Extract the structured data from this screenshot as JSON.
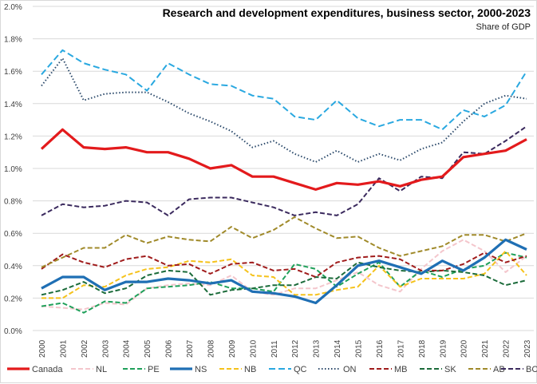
{
  "chart_data": {
    "type": "line",
    "title": "Research and development expenditures, business sector, 2000-2023",
    "subtitle": "Share of GDP",
    "xlabel": "",
    "ylabel": "",
    "ylim": [
      0,
      2.0
    ],
    "y_ticks": [
      0.0,
      0.2,
      0.4,
      0.6,
      0.8,
      1.0,
      1.2,
      1.4,
      1.6,
      1.8,
      2.0
    ],
    "y_tick_labels": [
      "0.0%",
      "0.2%",
      "0.4%",
      "0.6%",
      "0.8%",
      "1.0%",
      "1.2%",
      "1.4%",
      "1.6%",
      "1.8%",
      "2.0%"
    ],
    "grid": true,
    "legend_position": "bottom",
    "x": [
      "2000",
      "2001",
      "2002",
      "2003",
      "2004",
      "2005",
      "2006",
      "2007",
      "2008",
      "2009",
      "2010",
      "2011",
      "2012",
      "2013",
      "2014",
      "2015",
      "2016",
      "2017",
      "2018",
      "2019",
      "2020",
      "2021",
      "2022",
      "2023"
    ],
    "series": [
      {
        "name": "Canada",
        "color": "#e31a1c",
        "style": "solid-thick",
        "values": [
          1.12,
          1.24,
          1.13,
          1.12,
          1.13,
          1.1,
          1.1,
          1.06,
          1.0,
          1.02,
          0.95,
          0.95,
          0.91,
          0.87,
          0.91,
          0.9,
          0.92,
          0.89,
          0.93,
          0.95,
          1.07,
          1.09,
          1.11,
          1.18
        ]
      },
      {
        "name": "NL",
        "color": "#f4c6cc",
        "style": "dashed",
        "values": [
          0.15,
          0.14,
          0.13,
          0.17,
          0.16,
          0.26,
          0.28,
          0.29,
          0.28,
          0.34,
          0.24,
          0.22,
          0.26,
          0.26,
          0.31,
          0.36,
          0.28,
          0.24,
          0.38,
          0.49,
          0.56,
          0.49,
          0.36,
          0.46
        ]
      },
      {
        "name": "PE",
        "color": "#1fa05a",
        "style": "dashed",
        "values": [
          0.15,
          0.17,
          0.11,
          0.18,
          0.17,
          0.26,
          0.27,
          0.28,
          0.3,
          0.26,
          0.26,
          0.24,
          0.41,
          0.38,
          0.27,
          0.35,
          0.42,
          0.27,
          0.37,
          0.33,
          0.38,
          0.4,
          0.48,
          0.45
        ]
      },
      {
        "name": "NS",
        "color": "#1f6fb4",
        "style": "solid-thick",
        "values": [
          0.26,
          0.33,
          0.33,
          0.25,
          0.3,
          0.3,
          0.32,
          0.31,
          0.29,
          0.31,
          0.24,
          0.23,
          0.21,
          0.17,
          0.28,
          0.4,
          0.43,
          0.39,
          0.35,
          0.43,
          0.37,
          0.45,
          0.56,
          0.5
        ]
      },
      {
        "name": "NB",
        "color": "#f5c21b",
        "style": "dashed",
        "values": [
          0.2,
          0.2,
          0.28,
          0.27,
          0.34,
          0.38,
          0.39,
          0.43,
          0.42,
          0.44,
          0.34,
          0.33,
          0.22,
          0.22,
          0.25,
          0.27,
          0.4,
          0.27,
          0.32,
          0.32,
          0.32,
          0.35,
          0.49,
          0.34
        ]
      },
      {
        "name": "QC",
        "color": "#29a8e0",
        "style": "dashed-long",
        "values": [
          1.58,
          1.73,
          1.65,
          1.61,
          1.58,
          1.48,
          1.65,
          1.58,
          1.52,
          1.51,
          1.45,
          1.43,
          1.32,
          1.3,
          1.42,
          1.31,
          1.26,
          1.3,
          1.3,
          1.24,
          1.36,
          1.32,
          1.39,
          1.6
        ]
      },
      {
        "name": "ON",
        "color": "#2c4a6b",
        "style": "dotted",
        "values": [
          1.51,
          1.68,
          1.42,
          1.46,
          1.47,
          1.47,
          1.41,
          1.34,
          1.29,
          1.23,
          1.13,
          1.17,
          1.09,
          1.04,
          1.11,
          1.04,
          1.09,
          1.05,
          1.12,
          1.16,
          1.29,
          1.4,
          1.45,
          1.43
        ]
      },
      {
        "name": "MB",
        "color": "#a01c1c",
        "style": "dashed",
        "values": [
          0.38,
          0.47,
          0.42,
          0.39,
          0.44,
          0.46,
          0.4,
          0.41,
          0.35,
          0.41,
          0.42,
          0.37,
          0.38,
          0.33,
          0.42,
          0.45,
          0.46,
          0.44,
          0.37,
          0.37,
          0.41,
          0.48,
          0.42,
          0.46
        ]
      },
      {
        "name": "SK",
        "color": "#1b6b3a",
        "style": "dashed",
        "values": [
          0.22,
          0.25,
          0.3,
          0.23,
          0.26,
          0.34,
          0.37,
          0.36,
          0.22,
          0.25,
          0.26,
          0.28,
          0.28,
          0.33,
          0.32,
          0.42,
          0.39,
          0.37,
          0.36,
          0.37,
          0.36,
          0.34,
          0.28,
          0.31
        ]
      },
      {
        "name": "AB",
        "color": "#a08a2a",
        "style": "dashed",
        "values": [
          0.39,
          0.45,
          0.51,
          0.51,
          0.59,
          0.54,
          0.58,
          0.56,
          0.55,
          0.64,
          0.57,
          0.62,
          0.7,
          0.63,
          0.57,
          0.58,
          0.51,
          0.46,
          0.49,
          0.52,
          0.59,
          0.59,
          0.55,
          0.6
        ]
      },
      {
        "name": "BC",
        "color": "#3b2a5e",
        "style": "dashed",
        "values": [
          0.71,
          0.78,
          0.76,
          0.77,
          0.8,
          0.79,
          0.71,
          0.81,
          0.82,
          0.82,
          0.79,
          0.76,
          0.71,
          0.73,
          0.71,
          0.78,
          0.94,
          0.86,
          0.95,
          0.94,
          1.1,
          1.09,
          1.17,
          1.26
        ]
      }
    ]
  }
}
